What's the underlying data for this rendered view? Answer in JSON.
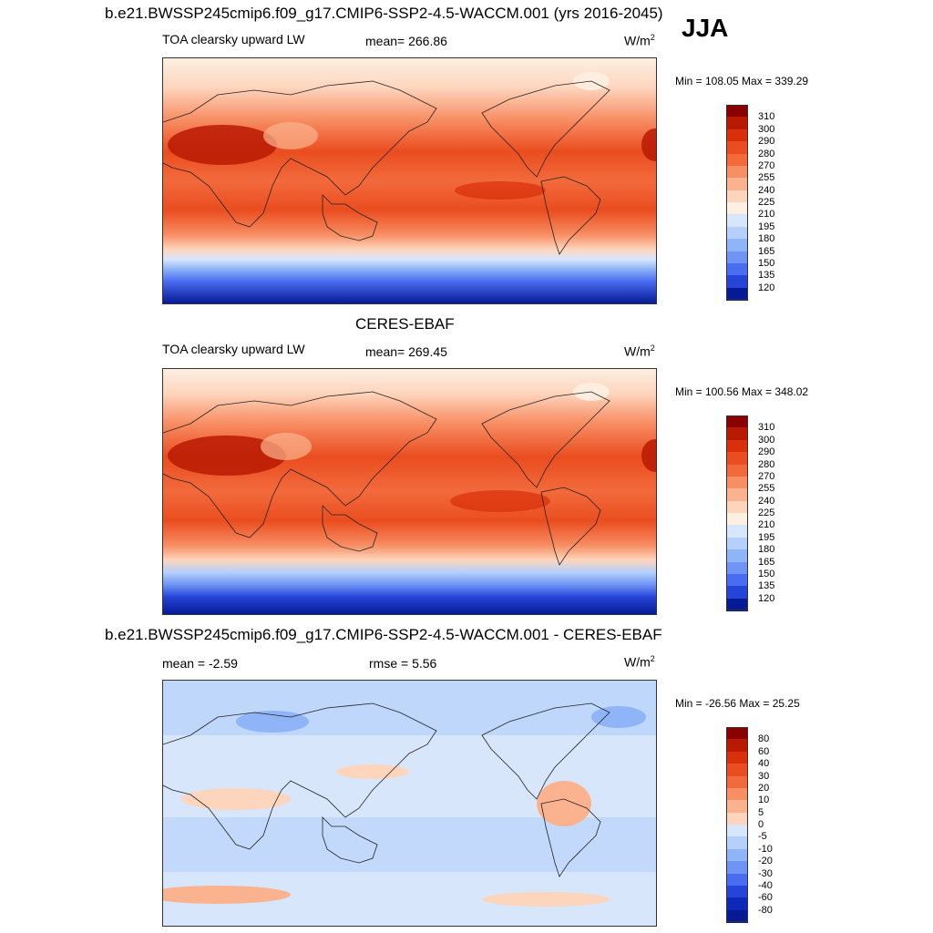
{
  "season": "JJA",
  "panels": [
    {
      "title": "b.e21.BWSSP245cmip6.f09_g17.CMIP6-SSP2-4.5-WACCM.001 (yrs 2016-2045)",
      "variable": "TOA clearsky upward LW",
      "stat_left": "",
      "stat_mid": "mean= 266.86",
      "units": "W/m",
      "units_exp": "2",
      "minmax": "Min = 108.05 Max = 339.29"
    },
    {
      "title": "CERES-EBAF",
      "variable": "TOA clearsky upward LW",
      "stat_left": "",
      "stat_mid": "mean= 269.45",
      "units": "W/m",
      "units_exp": "2",
      "minmax": "Min = 100.56 Max = 348.02"
    },
    {
      "title": "b.e21.BWSSP245cmip6.f09_g17.CMIP6-SSP2-4.5-WACCM.001 - CERES-EBAF",
      "variable": "",
      "stat_left": "mean =  -2.59",
      "stat_mid": "rmse =   5.56",
      "units": "W/m",
      "units_exp": "2",
      "minmax": "Min = -26.56 Max =  25.25"
    }
  ],
  "colorbars": {
    "absolute": {
      "labels": [
        "310",
        "300",
        "290",
        "280",
        "270",
        "255",
        "240",
        "225",
        "210",
        "195",
        "180",
        "165",
        "150",
        "135",
        "120"
      ],
      "colors": [
        "#8b0000",
        "#b81a04",
        "#d92f0a",
        "#ea4d1f",
        "#f26a3c",
        "#f88e64",
        "#fbb38f",
        "#fdd5bd",
        "#fdf0e2",
        "#d8e6fb",
        "#b4d0fb",
        "#8fb4f7",
        "#6f94f5",
        "#4a6cf0",
        "#2744d8",
        "#061a96"
      ]
    },
    "difference": {
      "labels": [
        "80",
        "60",
        "40",
        "30",
        "20",
        "10",
        "5",
        "0",
        "-5",
        "-10",
        "-20",
        "-30",
        "-40",
        "-60",
        "-80"
      ],
      "colors": [
        "#8b0000",
        "#b81a04",
        "#d92f0a",
        "#ea4d1f",
        "#f26a3c",
        "#f88e64",
        "#fbb38f",
        "#fdd5bd",
        "#d8e6fb",
        "#b4d0fb",
        "#8fb4f7",
        "#6f94f5",
        "#4a6cf0",
        "#2744d8",
        "#1028b8",
        "#061a96"
      ]
    }
  }
}
